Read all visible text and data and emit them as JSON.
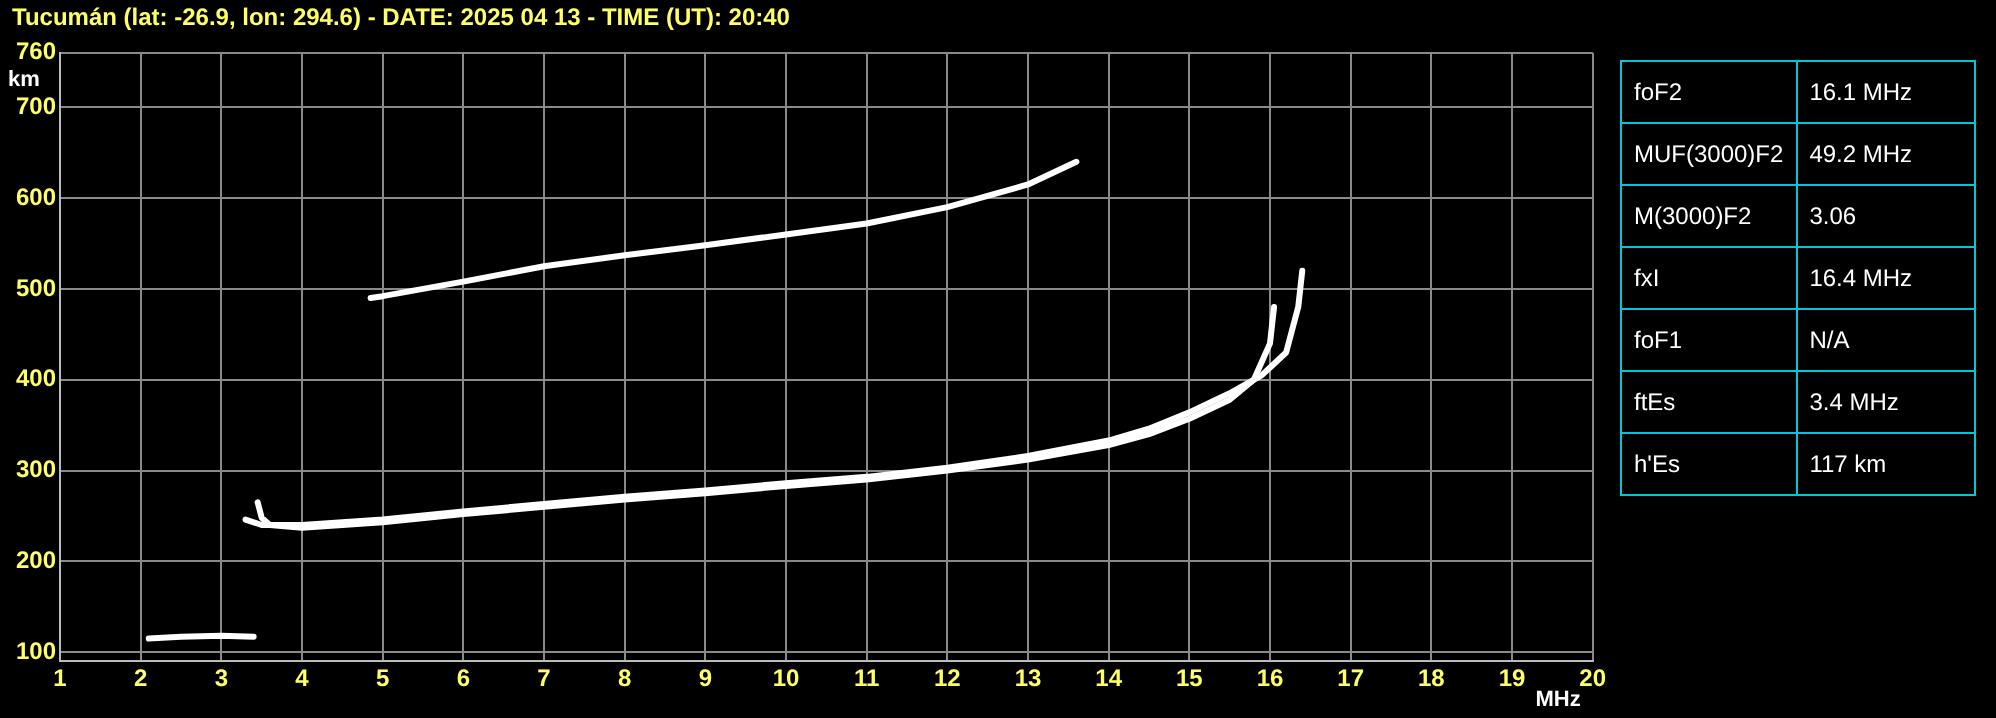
{
  "chart_data": [
    {
      "type": "line",
      "title": "Tucumán (lat: -26.9, lon: 294.6) - DATE: 2025 04 13 - TIME (UT): 20:40",
      "xlabel": "MHz",
      "ylabel": "km",
      "xlim": [
        1,
        20
      ],
      "xticks": [
        1,
        2,
        3,
        4,
        5,
        6,
        7,
        8,
        9,
        10,
        11,
        12,
        13,
        14,
        15,
        16,
        17,
        18,
        19,
        20
      ],
      "ylim": [
        90,
        760
      ],
      "yticks": [
        100,
        200,
        300,
        400,
        500,
        600,
        700,
        760
      ],
      "grid": true,
      "legend": false,
      "marker": "none",
      "line_style": "solid",
      "series": [
        {
          "color": "#ffffff",
          "x": [
            2.1,
            2.5,
            3.0,
            3.4
          ],
          "values": [
            115,
            117,
            118,
            117
          ]
        },
        {
          "color": "#ffffff",
          "x": [
            3.45,
            3.5,
            3.6,
            4,
            5,
            6,
            7,
            8,
            9,
            10,
            11,
            12,
            13,
            14,
            14.5,
            15,
            15.5,
            15.8,
            16.0,
            16.05
          ],
          "values": [
            265,
            248,
            240,
            237,
            243,
            252,
            260,
            268,
            275,
            283,
            290,
            300,
            312,
            328,
            340,
            357,
            378,
            400,
            440,
            480
          ]
        },
        {
          "color": "#ffffff",
          "x": [
            3.3,
            3.5,
            4,
            5,
            6,
            7,
            8,
            9,
            10,
            11,
            12,
            13,
            14,
            14.5,
            15,
            15.5,
            15.9,
            16.2,
            16.35,
            16.4
          ],
          "values": [
            246,
            240,
            240,
            246,
            255,
            263,
            271,
            278,
            286,
            293,
            303,
            316,
            333,
            346,
            364,
            385,
            405,
            430,
            480,
            520
          ]
        },
        {
          "color": "#ffffff",
          "x": [
            4.85,
            5,
            6,
            7,
            8,
            9,
            10,
            11,
            12,
            13,
            13.6
          ],
          "values": [
            490,
            492,
            508,
            525,
            537,
            548,
            560,
            572,
            590,
            615,
            640
          ]
        }
      ]
    },
    {
      "type": "other",
      "categories": [
        "foF2",
        "MUF(3000)F2",
        "M(3000)F2",
        "fxI",
        "foF1",
        "ftEs",
        "h'Es"
      ],
      "value_labels": [
        "16.1 MHz",
        "49.2 MHz",
        "3.06",
        "16.4 MHz",
        "N/A",
        "3.4 MHz",
        "117 km"
      ]
    }
  ]
}
